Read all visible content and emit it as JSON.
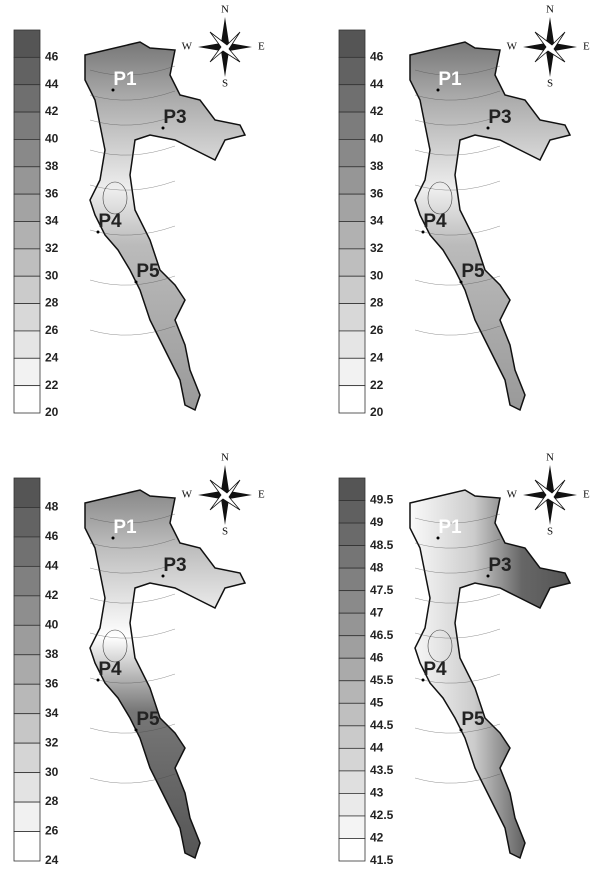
{
  "panels": [
    {
      "legend": [
        "46",
        "44",
        "42",
        "40",
        "38",
        "36",
        "34",
        "32",
        "30",
        "28",
        "26",
        "24",
        "22",
        "20"
      ],
      "points": [
        "P1",
        "P3",
        "P4",
        "P5"
      ],
      "compass": [
        "N",
        "S",
        "W",
        "E"
      ]
    },
    {
      "legend": [
        "46",
        "44",
        "42",
        "40",
        "38",
        "36",
        "34",
        "32",
        "30",
        "28",
        "26",
        "24",
        "22",
        "20"
      ],
      "points": [
        "P1",
        "P3",
        "P4",
        "P5"
      ],
      "compass": [
        "N",
        "S",
        "W",
        "E"
      ]
    },
    {
      "legend": [
        "48",
        "46",
        "44",
        "42",
        "40",
        "38",
        "36",
        "34",
        "32",
        "30",
        "28",
        "26",
        "24"
      ],
      "points": [
        "P1",
        "P3",
        "P4",
        "P5"
      ],
      "compass": [
        "N",
        "S",
        "W",
        "E"
      ]
    },
    {
      "legend": [
        "49.5",
        "49",
        "48.5",
        "48",
        "47.5",
        "47",
        "46.5",
        "46",
        "45.5",
        "45",
        "44.5",
        "44",
        "43.5",
        "43",
        "42.5",
        "42",
        "41.5"
      ],
      "points": [
        "P1",
        "P3",
        "P4",
        "P5"
      ],
      "compass": [
        "N",
        "S",
        "W",
        "E"
      ]
    }
  ]
}
